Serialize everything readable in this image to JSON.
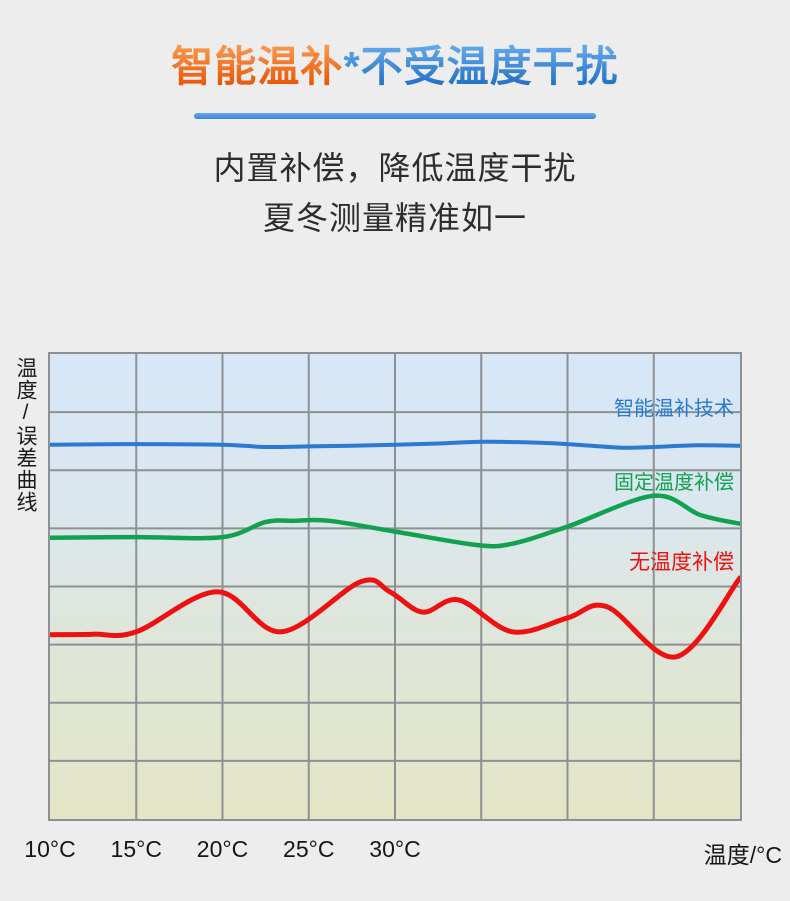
{
  "page": {
    "background": "#ededed"
  },
  "header": {
    "title_highlight": "智能温补",
    "title_star": "*",
    "title_rest": "不受温度干扰",
    "subtitle_line1": "内置补偿，降低温度干扰",
    "subtitle_line2": "夏冬测量精准如一"
  },
  "colors": {
    "accent_orange": "#f1620a",
    "accent_blue": "#2e7fd4",
    "divider_blue": "#4a90da",
    "grid": "#8d9094",
    "chart_bg_top": "#d7e7f8",
    "chart_bg_bottom": "#e3e5c5",
    "subtitle_text": "#2d2d2d",
    "axis_text": "#161616"
  },
  "chart_data": {
    "type": "line",
    "title": "",
    "ylabel": "温度/误差曲线",
    "xlabel": "温度/°C",
    "x_ticks": [
      "10°C",
      "15°C",
      "20°C",
      "25°C",
      "30°C"
    ],
    "x_tick_values": [
      10,
      15,
      20,
      25,
      30
    ],
    "x_range": [
      10,
      50
    ],
    "y_range": [
      0,
      8
    ],
    "grid": {
      "on": true,
      "x_step_degC": 5,
      "y_step_units": 1,
      "columns": 8,
      "rows": 8
    },
    "y_axis_note": "y axis has no numeric labels; values below are grid units measured from chart bottom (higher = smaller measurement error)",
    "legend_position": "right, stacked above each curve",
    "series": [
      {
        "name": "智能温补技术",
        "color": "#2a79d2",
        "points": [
          [
            10,
            6.44
          ],
          [
            15,
            6.45
          ],
          [
            20,
            6.44
          ],
          [
            22.5,
            6.4
          ],
          [
            25,
            6.41
          ],
          [
            27.5,
            6.42
          ],
          [
            30,
            6.44
          ],
          [
            32.5,
            6.46
          ],
          [
            35,
            6.49
          ],
          [
            37.5,
            6.48
          ],
          [
            40,
            6.45
          ],
          [
            43,
            6.39
          ],
          [
            45,
            6.4
          ],
          [
            47.5,
            6.43
          ],
          [
            50,
            6.42
          ]
        ]
      },
      {
        "name": "固定温度补偿",
        "color": "#12a24f",
        "points": [
          [
            10,
            4.84
          ],
          [
            15,
            4.85
          ],
          [
            20,
            4.85
          ],
          [
            22.5,
            5.11
          ],
          [
            24.2,
            5.13
          ],
          [
            26.2,
            5.13
          ],
          [
            30.1,
            4.94
          ],
          [
            34.6,
            4.72
          ],
          [
            36.7,
            4.73
          ],
          [
            40,
            5.03
          ],
          [
            45,
            5.56
          ],
          [
            47.7,
            5.23
          ],
          [
            50,
            5.08
          ]
        ]
      },
      {
        "name": "无温度补偿",
        "color": "#ee1111",
        "points": [
          [
            10,
            3.17
          ],
          [
            12.5,
            3.18
          ],
          [
            15,
            3.22
          ],
          [
            19.7,
            3.91
          ],
          [
            23.4,
            3.22
          ],
          [
            28,
            4.08
          ],
          [
            29.7,
            3.91
          ],
          [
            31.6,
            3.56
          ],
          [
            33.7,
            3.77
          ],
          [
            36.8,
            3.22
          ],
          [
            40,
            3.46
          ],
          [
            42.3,
            3.65
          ],
          [
            46.3,
            2.79
          ],
          [
            50,
            4.15
          ]
        ]
      }
    ]
  }
}
